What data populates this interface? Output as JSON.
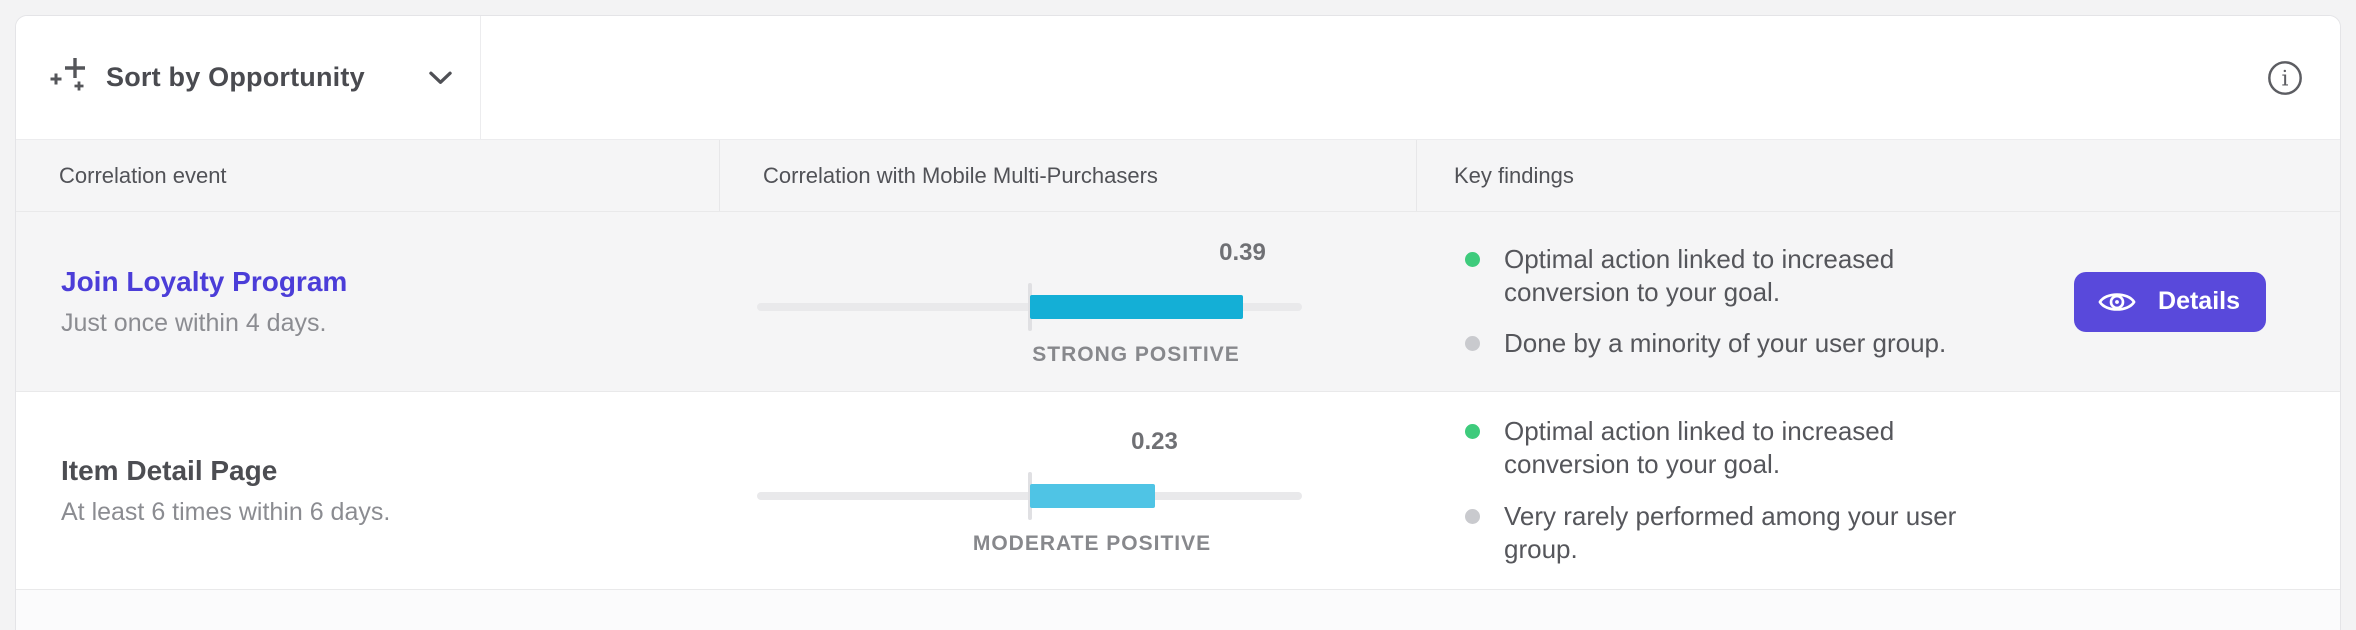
{
  "toolbar": {
    "sort_label": "Sort by Opportunity"
  },
  "table": {
    "columns": [
      "Correlation event",
      "Correlation with Mobile Multi-Purchasers",
      "Key findings"
    ],
    "rows": [
      {
        "event_title": "Join Loyalty Program",
        "event_subtitle": "Just once within 4 days.",
        "correlation": {
          "value": "0.39",
          "numeric": 0.39,
          "scale_max": 0.5,
          "strength_label": "STRONG POSITIVE",
          "bar_color": "#14afd6"
        },
        "findings": [
          {
            "dot_color": "#3ecb7c",
            "text": "Optimal action linked to increased conversion to your goal."
          },
          {
            "dot_color": "#c9cace",
            "text": "Done by a minority of your user group."
          }
        ],
        "action_label": "Details"
      },
      {
        "event_title": "Item Detail Page",
        "event_subtitle": "At least 6 times within 6 days.",
        "correlation": {
          "value": "0.23",
          "numeric": 0.23,
          "scale_max": 0.5,
          "strength_label": "MODERATE POSITIVE",
          "bar_color": "#4fc4e5"
        },
        "findings": [
          {
            "dot_color": "#3ecb7c",
            "text": "Optimal action linked to increased conversion to your goal."
          },
          {
            "dot_color": "#c9cace",
            "text": "Very rarely performed among your user group."
          }
        ]
      }
    ]
  },
  "colors": {
    "accent": "#5949db",
    "link": "#4b3dd8",
    "bar_strong": "#14afd6",
    "bar_moderate": "#4fc4e5",
    "positive_dot": "#3ecb7c",
    "neutral_dot": "#c9cace"
  }
}
